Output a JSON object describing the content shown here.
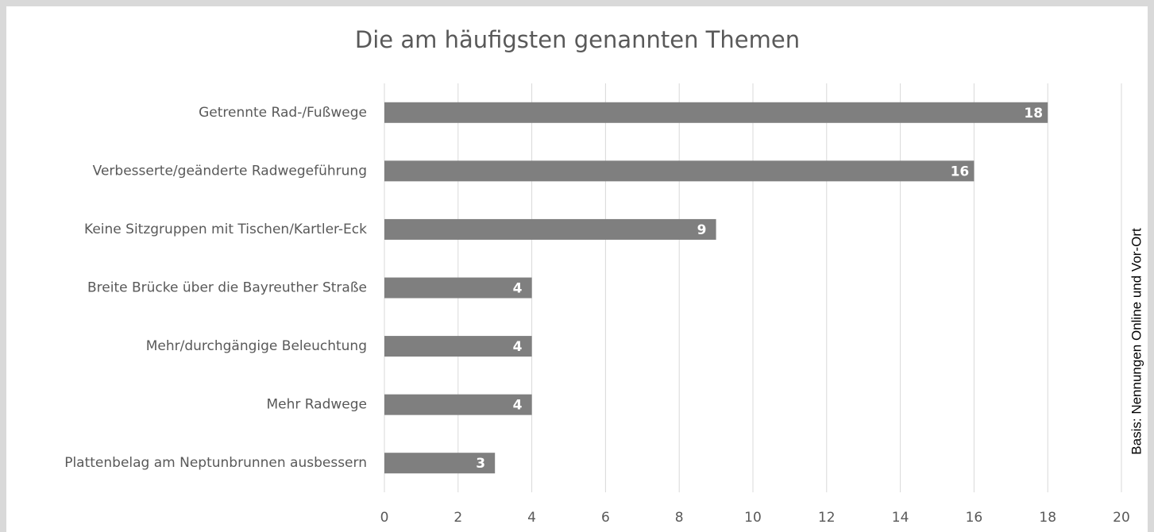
{
  "chart_data": {
    "type": "bar",
    "orientation": "horizontal",
    "title": "Die am häufigsten genannten Themen",
    "side_note": "Basis: Nennungen Online und Vor-Ort",
    "categories": [
      "Getrennte Rad-/Fußwege",
      "Verbesserte/geänderte Radwegeführung",
      "Keine Sitzgruppen mit Tischen/Kartler-Eck",
      "Breite Brücke über die Bayreuther Straße",
      "Mehr/durchgängige Beleuchtung",
      "Mehr Radwege",
      "Plattenbelag am Neptunbrunnen ausbessern"
    ],
    "values": [
      18,
      16,
      9,
      4,
      4,
      4,
      3
    ],
    "color": "#7f7f7f",
    "xlim": [
      0,
      20
    ],
    "xticks": [
      0,
      2,
      4,
      6,
      8,
      10,
      12,
      14,
      16,
      18,
      20
    ],
    "grid": true
  }
}
